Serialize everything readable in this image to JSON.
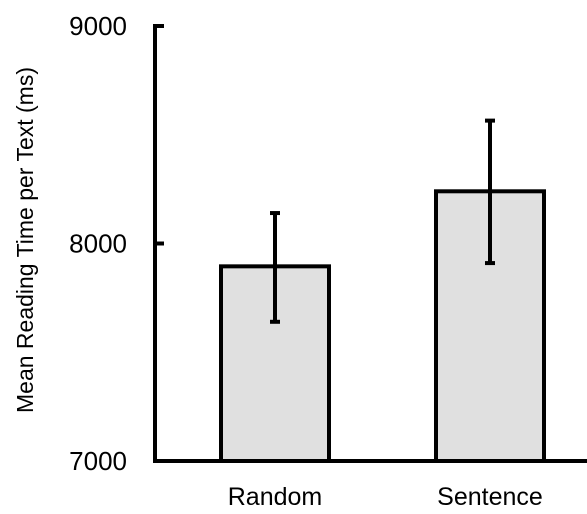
{
  "chart_data": {
    "type": "bar",
    "title": "",
    "xlabel": "",
    "ylabel": "Mean Reading Time per Text  (ms)",
    "categories": [
      "Random",
      "Sentence"
    ],
    "values": [
      7895,
      8240
    ],
    "error_bars": {
      "lower": [
        7640,
        7910
      ],
      "upper": [
        8140,
        8565
      ]
    },
    "ylim": [
      7000,
      9000
    ],
    "y_ticks": [
      7000,
      8000,
      9000
    ],
    "y_tick_labels": [
      "7000",
      "8000",
      "9000"
    ],
    "grid": false,
    "legend": "none",
    "colors": {
      "bar_fill": "#e0e0e0",
      "bar_stroke": "#000000",
      "axis": "#000000",
      "error_bar": "#000000"
    }
  }
}
